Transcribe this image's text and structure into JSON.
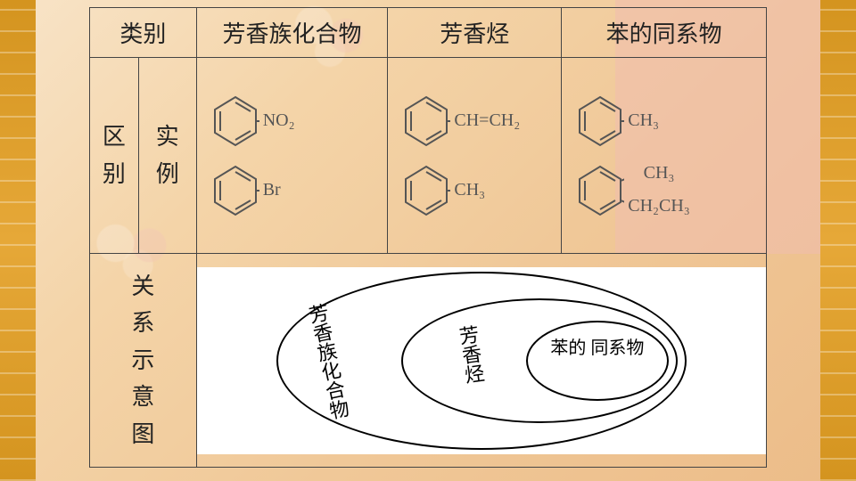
{
  "header": {
    "col1": "类别",
    "col2": "芳香族化合物",
    "col3": "芳香烃",
    "col4": "苯的同系物"
  },
  "row2_label_outer": "区别",
  "row2_label_inner": "实例",
  "row3_label": "关系示意图",
  "molecules": {
    "c2": {
      "top": "NO₂",
      "bottom": "Br"
    },
    "c3": {
      "top": "CH=CH₂",
      "bottom": "CH₃"
    },
    "c4": {
      "top": "CH₃",
      "bottom_a": "CH₃",
      "bottom_b": "CH₂CH₃"
    }
  },
  "venn": {
    "outer": "芳香族化合物",
    "middle": "芳香烃",
    "inner": "苯的\n同系物"
  },
  "colors": {
    "border": "#444444",
    "text": "#222222",
    "chem_text": "#555555",
    "bg_gradient_start": "#f8e4c8",
    "bg_gradient_end": "#ecbc88",
    "frame": "#d4941f",
    "pink_panel": "rgba(240,190,175,0.55)"
  }
}
